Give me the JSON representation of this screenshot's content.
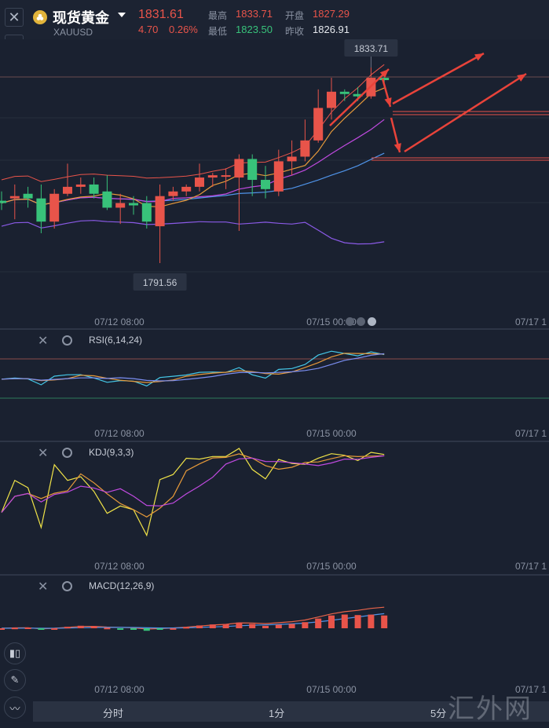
{
  "header": {
    "title": "现货黄金",
    "symbol": "XAUUSD",
    "price": "1831.61",
    "change": "4.70",
    "change_pct": "0.26%",
    "high_label": "最高",
    "high": "1833.71",
    "open_label": "开盘",
    "open": "1827.29",
    "low_label": "最低",
    "low": "1823.50",
    "prev_label": "昨收",
    "prev": "1826.91"
  },
  "price_chart": {
    "max_label": "1833.71",
    "min_label": "1791.56",
    "time_ticks": [
      "07/12 08:00",
      "07/15 00:00",
      "07/17 1"
    ]
  },
  "indicators": {
    "rsi": {
      "label": "RSI(6,14,24)",
      "time_ticks": [
        "07/12 08:00",
        "07/15 00:00",
        "07/17 1"
      ]
    },
    "kdj": {
      "label": "KDJ(9,3,3)",
      "time_ticks": [
        "07/12 08:00",
        "07/15 00:00",
        "07/17 1"
      ]
    },
    "macd": {
      "label": "MACD(12,26,9)",
      "time_ticks": [
        "07/12 08:00",
        "07/15 00:00",
        "07/17 1"
      ]
    }
  },
  "tabs": [
    "分时",
    "1分",
    "5分"
  ],
  "watermark": "汇外网",
  "colors": {
    "up": "#e8544a",
    "down": "#38c27a",
    "bg": "#1a2130",
    "ma_orange": "#e79a3a",
    "ma_purple": "#c04ae0",
    "ma_blue": "#4f93e8",
    "boll_purple": "#8a5ae6",
    "kdj_yellow": "#f0e348",
    "rsi_cyan": "#45c8e8"
  },
  "chart_data": {
    "type": "candlestick",
    "candles": [
      {
        "o": 1805.0,
        "h": 1807.0,
        "l": 1803.0,
        "c": 1804.5
      },
      {
        "o": 1805.5,
        "h": 1808.5,
        "l": 1801.0,
        "c": 1806.0
      },
      {
        "o": 1806.5,
        "h": 1808.0,
        "l": 1803.5,
        "c": 1805.5
      },
      {
        "o": 1805.5,
        "h": 1808.5,
        "l": 1798.0,
        "c": 1800.5
      },
      {
        "o": 1800.5,
        "h": 1807.5,
        "l": 1799.0,
        "c": 1806.5
      },
      {
        "o": 1806.5,
        "h": 1813.0,
        "l": 1806.0,
        "c": 1808.0
      },
      {
        "o": 1808.0,
        "h": 1810.0,
        "l": 1806.5,
        "c": 1808.5
      },
      {
        "o": 1808.5,
        "h": 1810.0,
        "l": 1805.5,
        "c": 1806.5
      },
      {
        "o": 1807.0,
        "h": 1810.5,
        "l": 1803.0,
        "c": 1803.5
      },
      {
        "o": 1803.5,
        "h": 1806.5,
        "l": 1800.0,
        "c": 1804.5
      },
      {
        "o": 1804.5,
        "h": 1806.0,
        "l": 1802.0,
        "c": 1804.0
      },
      {
        "o": 1804.5,
        "h": 1806.0,
        "l": 1799.0,
        "c": 1800.5
      },
      {
        "o": 1799.5,
        "h": 1808.5,
        "l": 1791.56,
        "c": 1806.0
      },
      {
        "o": 1806.0,
        "h": 1808.0,
        "l": 1805.0,
        "c": 1807.0
      },
      {
        "o": 1807.0,
        "h": 1808.5,
        "l": 1806.0,
        "c": 1808.0
      },
      {
        "o": 1808.0,
        "h": 1813.0,
        "l": 1807.0,
        "c": 1810.0
      },
      {
        "o": 1810.0,
        "h": 1811.0,
        "l": 1808.0,
        "c": 1810.5
      },
      {
        "o": 1810.5,
        "h": 1812.0,
        "l": 1807.5,
        "c": 1810.5
      },
      {
        "o": 1810.0,
        "h": 1815.0,
        "l": 1798.5,
        "c": 1814.0
      },
      {
        "o": 1814.0,
        "h": 1815.0,
        "l": 1806.0,
        "c": 1809.5
      },
      {
        "o": 1809.5,
        "h": 1812.5,
        "l": 1805.5,
        "c": 1807.5
      },
      {
        "o": 1807.0,
        "h": 1816.0,
        "l": 1806.0,
        "c": 1813.5
      },
      {
        "o": 1813.5,
        "h": 1818.0,
        "l": 1810.5,
        "c": 1814.5
      },
      {
        "o": 1814.5,
        "h": 1822.5,
        "l": 1813.5,
        "c": 1818.0
      },
      {
        "o": 1818.0,
        "h": 1829.0,
        "l": 1817.5,
        "c": 1825.0
      },
      {
        "o": 1825.0,
        "h": 1831.5,
        "l": 1822.5,
        "c": 1828.5
      },
      {
        "o": 1828.5,
        "h": 1829.0,
        "l": 1826.5,
        "c": 1828.0
      },
      {
        "o": 1828.0,
        "h": 1829.5,
        "l": 1826.5,
        "c": 1827.5
      },
      {
        "o": 1827.5,
        "h": 1833.71,
        "l": 1827.0,
        "c": 1831.5
      },
      {
        "o": 1831.5,
        "h": 1832.0,
        "l": 1830.5,
        "c": 1831.0
      }
    ],
    "x_labels": [
      "07/12 08:00",
      "07/15 00:00",
      "07/17 1"
    ],
    "annotations": [
      "1833.71",
      "1791.56"
    ]
  }
}
